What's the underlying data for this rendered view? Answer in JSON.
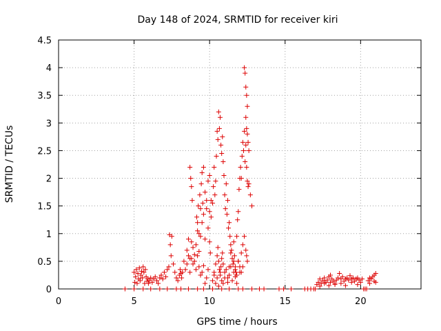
{
  "chart_data": {
    "type": "scatter",
    "title": "Day 148 of 2024, SRMTID for receiver kiri",
    "xlabel": "GPS time / hours",
    "ylabel": "SRMTID / TECUs",
    "xlim": [
      0,
      24
    ],
    "ylim": [
      0,
      4.5
    ],
    "xticks": [
      0,
      5,
      10,
      15,
      20
    ],
    "xtick_labels": [
      "0",
      "5",
      "10",
      "15",
      "20"
    ],
    "yticks": [
      0,
      0.5,
      1,
      1.5,
      2,
      2.5,
      3,
      3.5,
      4,
      4.5
    ],
    "ytick_labels": [
      "0",
      "0.5",
      "1",
      "1.5",
      "2",
      "2.5",
      "3",
      "3.5",
      "4",
      "4.5"
    ],
    "grid": true,
    "legend": "none",
    "marker": "+",
    "series": [
      {
        "name": "SRMTID",
        "color": "#dd0000",
        "x": [
          4.4,
          5.0,
          5.6,
          6.1,
          6.7,
          7.2,
          7.8,
          8.1,
          8.6,
          9.2,
          9.6,
          10.2,
          10.8,
          11.3,
          11.9,
          12.2,
          12.8,
          13.3,
          13.6,
          14.6,
          14.9,
          15.4,
          16.3,
          16.5,
          16.7,
          16.9,
          17.0,
          20.2,
          20.3,
          20.4,
          5.0,
          5.05,
          5.1,
          5.15,
          5.2,
          5.25,
          5.3,
          5.35,
          5.4,
          5.45,
          5.5,
          5.55,
          5.6,
          5.65,
          5.7,
          5.75,
          5.8,
          5.85,
          5.9,
          5.95,
          6.0,
          6.1,
          6.2,
          6.3,
          6.4,
          6.5,
          6.6,
          6.7,
          6.8,
          6.9,
          7.0,
          7.1,
          7.2,
          7.3,
          7.35,
          7.4,
          7.45,
          7.5,
          7.6,
          7.7,
          7.8,
          7.9,
          8.0,
          8.05,
          8.1,
          8.15,
          8.2,
          8.3,
          8.4,
          8.5,
          8.6,
          8.7,
          8.8,
          8.9,
          9.0,
          9.1,
          9.2,
          9.3,
          9.4,
          9.5,
          9.6,
          9.7,
          9.8,
          9.9,
          8.5,
          8.6,
          8.7,
          8.8,
          8.9,
          9.0,
          9.1,
          9.2,
          9.3,
          9.4,
          9.5,
          9.6,
          9.7,
          9.8,
          9.9,
          10.0,
          10.05,
          10.1,
          8.7,
          8.75,
          8.8,
          8.85,
          9.15,
          9.2,
          9.25,
          9.3,
          9.35,
          9.4,
          9.45,
          9.5,
          9.55,
          9.6,
          9.7,
          9.8,
          9.9,
          10.0,
          10.0,
          10.1,
          10.2,
          10.25,
          10.3,
          10.35,
          10.4,
          10.45,
          10.5,
          10.55,
          10.6,
          10.65,
          10.7,
          10.75,
          10.8,
          10.85,
          10.9,
          10.95,
          11.0,
          11.05,
          11.1,
          11.15,
          11.2,
          11.25,
          11.3,
          11.35,
          11.4,
          11.45,
          11.5,
          11.55,
          11.6,
          11.65,
          11.7,
          11.75,
          11.8,
          11.85,
          11.9,
          11.95,
          12.0,
          12.05,
          12.1,
          12.15,
          12.2,
          12.25,
          12.3,
          12.35,
          12.4,
          12.45,
          12.5,
          12.55,
          12.6,
          12.7,
          12.8,
          10.3,
          10.4,
          10.5,
          10.55,
          10.6,
          10.65,
          10.7,
          10.75,
          10.8,
          10.85,
          10.9,
          11.0,
          11.2,
          11.3,
          11.4,
          11.6,
          11.7,
          11.8,
          11.9,
          12.0,
          12.1,
          12.2,
          12.3,
          12.4,
          12.45,
          12.5,
          12.3,
          12.35,
          12.4,
          12.45,
          12.5,
          12.4,
          12.45,
          12.5,
          12.55,
          12.6,
          10.2,
          10.3,
          10.4,
          10.5,
          10.6,
          10.7,
          10.8,
          10.9,
          11.0,
          11.1,
          11.2,
          11.3,
          11.4,
          11.5,
          11.6,
          11.7,
          11.8,
          11.9,
          12.0,
          12.1,
          12.2,
          17.1,
          17.2,
          17.3,
          17.4,
          17.5,
          17.6,
          17.7,
          17.8,
          17.9,
          18.0,
          18.1,
          18.2,
          18.3,
          18.4,
          18.5,
          18.6,
          18.7,
          18.8,
          18.9,
          19.0,
          19.1,
          19.2,
          19.3,
          19.4,
          19.5,
          19.6,
          19.7,
          19.8,
          19.9,
          20.0,
          20.1,
          20.5,
          20.6,
          20.7,
          20.8,
          20.9,
          21.0,
          17.3,
          17.6,
          17.9,
          18.0,
          18.3,
          18.7,
          19.0,
          19.4,
          19.8,
          20.6,
          20.9,
          21.0
        ],
        "y": [
          0,
          0,
          0,
          0,
          0,
          0,
          0,
          0,
          0,
          0,
          0,
          0,
          0,
          0,
          0,
          0,
          0,
          0,
          0,
          0,
          0,
          0,
          0,
          0,
          0,
          0,
          0,
          0,
          0,
          0,
          0.3,
          0.12,
          0.22,
          0.35,
          0.1,
          0.28,
          0.18,
          0.38,
          0.15,
          0.25,
          0.32,
          0.2,
          0.4,
          0.3,
          0.1,
          0.35,
          0.22,
          0.14,
          0.18,
          0.1,
          0.15,
          0.2,
          0.12,
          0.18,
          0.22,
          0.15,
          0.1,
          0.2,
          0.25,
          0.18,
          0.3,
          0.22,
          0.35,
          0.4,
          0.98,
          0.8,
          0.6,
          0.95,
          0.45,
          0.3,
          0.2,
          0.15,
          0.25,
          0.35,
          0.28,
          0.2,
          0.3,
          0.5,
          0.35,
          0.45,
          0.6,
          0.3,
          0.55,
          0.45,
          0.5,
          0.35,
          0.6,
          0.4,
          0.25,
          0.3,
          0.42,
          0.1,
          0.2,
          0.35,
          0.7,
          0.9,
          0.55,
          0.85,
          0.75,
          0.62,
          0.8,
          1.05,
          0.68,
          0.95,
          1.2,
          1.35,
          0.9,
          1.45,
          1.1,
          0.85,
          0.65,
          1.3,
          2.2,
          2.0,
          1.85,
          1.6,
          1.3,
          1.2,
          1.5,
          1.0,
          1.7,
          1.45,
          1.9,
          2.1,
          1.55,
          2.2,
          1.75,
          1.6,
          1.95,
          2.05,
          1.4,
          1.6,
          1.55,
          1.85,
          2.2,
          1.7,
          1.95,
          2.4,
          2.85,
          2.7,
          3.2,
          2.9,
          3.1,
          2.6,
          2.45,
          2.75,
          2.3,
          2.05,
          1.7,
          1.45,
          1.9,
          1.35,
          1.6,
          1.1,
          1.2,
          0.95,
          0.8,
          0.7,
          0.55,
          0.45,
          0.85,
          0.6,
          0.4,
          0.3,
          0.95,
          1.25,
          1.4,
          1.8,
          2.0,
          2.2,
          2.0,
          2.4,
          2.65,
          2.5,
          2.85,
          2.3,
          2.6,
          2.2,
          1.95,
          1.85,
          1.9,
          1.7,
          1.5,
          0.3,
          0.45,
          0.6,
          0.75,
          0.5,
          0.35,
          0.25,
          0.4,
          0.55,
          0.65,
          0.45,
          0.3,
          0.2,
          0.4,
          0.65,
          0.5,
          0.35,
          0.25,
          0.5,
          0.4,
          0.3,
          0.8,
          0.95,
          0.7,
          0.6,
          0.5,
          4.0,
          3.9,
          3.65,
          3.5,
          3.3,
          3.1,
          2.9,
          2.8,
          2.65,
          2.5,
          0.15,
          0.25,
          0.1,
          0.2,
          0.05,
          0.3,
          0.15,
          0.1,
          0.2,
          0.35,
          0.12,
          0.25,
          0.4,
          0.15,
          0.3,
          0.22,
          0.1,
          0.5,
          0.3,
          0.65,
          0.4,
          0.08,
          0.12,
          0.18,
          0.1,
          0.15,
          0.2,
          0.12,
          0.16,
          0.22,
          0.25,
          0.18,
          0.14,
          0.1,
          0.16,
          0.2,
          0.28,
          0.18,
          0.22,
          0.14,
          0.18,
          0.2,
          0.16,
          0.24,
          0.18,
          0.2,
          0.14,
          0.18,
          0.2,
          0.16,
          0.12,
          0.18,
          0.15,
          0.2,
          0.18,
          0.22,
          0.25,
          0.28,
          0.05,
          0.1,
          0.06,
          0.12,
          0.08,
          0.1,
          0.06,
          0.12,
          0.08,
          0.1,
          0.14,
          0.12
        ]
      }
    ]
  }
}
